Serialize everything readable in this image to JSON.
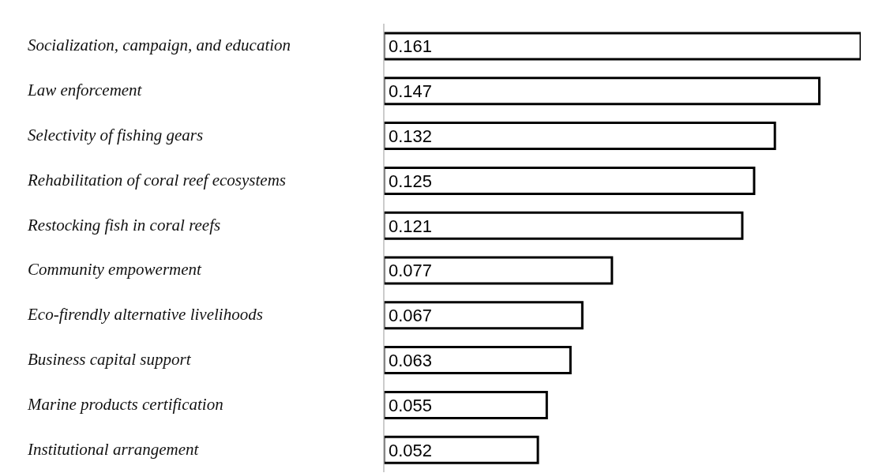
{
  "chart_data": {
    "type": "bar",
    "orientation": "horizontal",
    "categories": [
      "Socialization, campaign, and education",
      "Law enforcement",
      "Selectivity of fishing gears",
      "Rehabilitation of coral reef ecosystems",
      "Restocking fish in coral reefs",
      "Community empowerment",
      "Eco-firendly alternative livelihoods",
      "Business capital support",
      "Marine products certification",
      "Institutional arrangement"
    ],
    "values": [
      0.161,
      0.147,
      0.132,
      0.125,
      0.121,
      0.077,
      0.067,
      0.063,
      0.055,
      0.052
    ],
    "color": "#ffffff",
    "data_labels": true,
    "grid": false,
    "legend": false
  }
}
